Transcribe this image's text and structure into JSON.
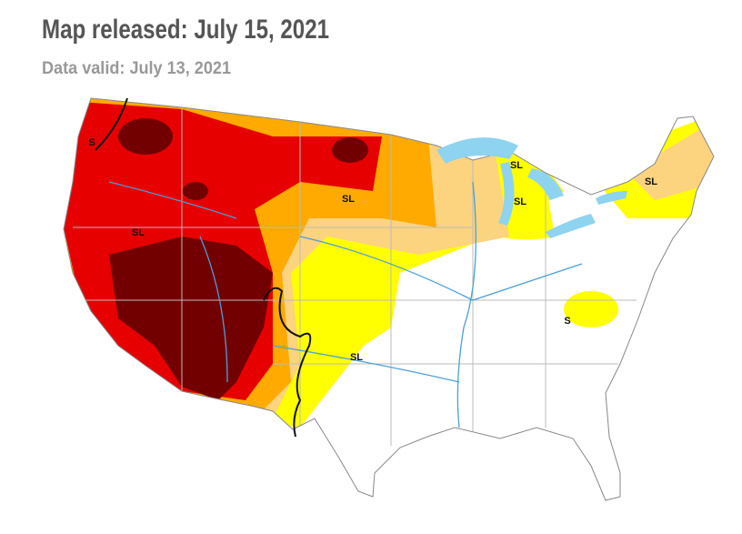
{
  "header": {
    "title": "Map released: July 15, 2021",
    "subtitle": "Data valid: July 13, 2021"
  },
  "map": {
    "labels": [
      "S",
      "SL",
      "SL",
      "SL",
      "SL",
      "SL",
      "S",
      "SL"
    ]
  }
}
